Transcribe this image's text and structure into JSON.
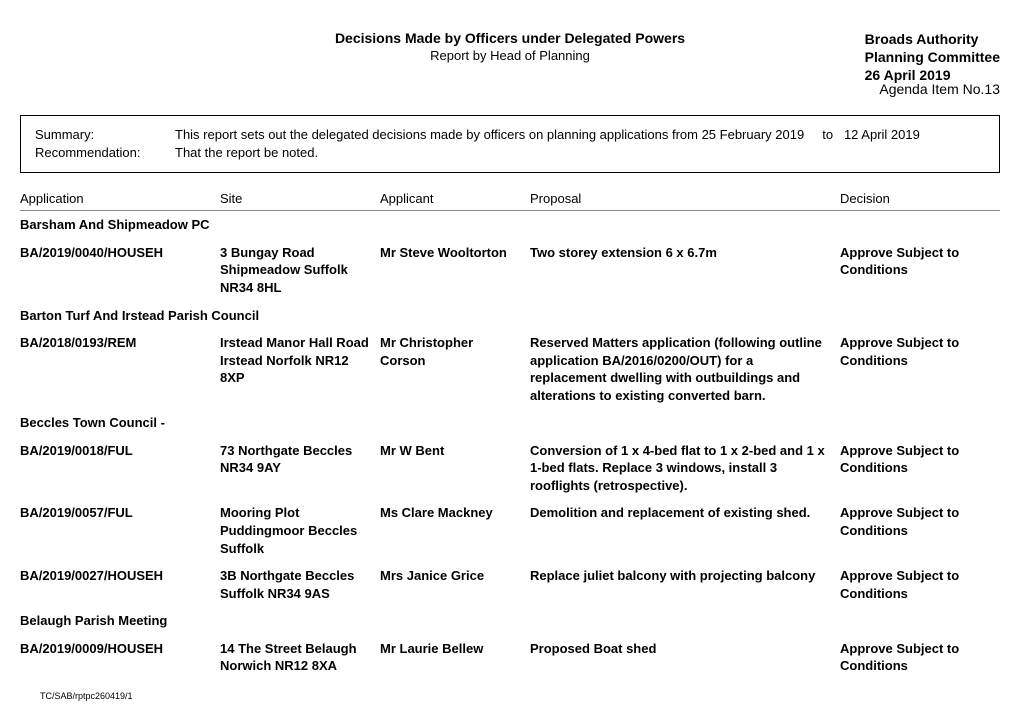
{
  "header": {
    "title": "Decisions Made by Officers under Delegated Powers",
    "subtitle": "Report by Head of Planning",
    "authority_line1": "Broads Authority",
    "authority_line2": "Planning Committee",
    "date": "26 April 2019",
    "agenda": "Agenda Item No.13"
  },
  "summary": {
    "label": "Summary:",
    "text_prefix": "This report sets out the delegated decisions made by officers on planning applications from",
    "date_from": "25 February 2019",
    "to_word": "to",
    "date_to": "12 April 2019",
    "rec_label": "Recommendation:",
    "rec_text": "That the report be noted."
  },
  "columns": {
    "application": "Application",
    "site": "Site",
    "applicant": "Applicant",
    "proposal": "Proposal",
    "decision": "Decision"
  },
  "groups": [
    {
      "name": "Barsham And Shipmeadow PC",
      "rows": [
        {
          "application": "BA/2019/0040/HOUSEH",
          "site": "3 Bungay Road Shipmeadow Suffolk NR34 8HL",
          "applicant": "Mr Steve Wooltorton",
          "proposal": "Two storey extension 6 x 6.7m",
          "decision": "Approve Subject to Conditions"
        }
      ]
    },
    {
      "name": "Barton Turf And Irstead Parish Council",
      "rows": [
        {
          "application": "BA/2018/0193/REM",
          "site": "Irstead Manor Hall Road Irstead Norfolk NR12 8XP",
          "applicant": "Mr Christopher Corson",
          "proposal": "Reserved Matters application (following outline application BA/2016/0200/OUT) for a replacement dwelling with outbuildings and alterations to existing converted barn.",
          "decision": "Approve Subject to Conditions"
        }
      ]
    },
    {
      "name": "Beccles Town Council -",
      "rows": [
        {
          "application": "BA/2019/0018/FUL",
          "site": "73 Northgate Beccles NR34 9AY",
          "applicant": "Mr W Bent",
          "proposal": "Conversion of 1 x 4-bed flat to 1 x 2-bed and 1 x 1-bed flats. Replace 3 windows, install 3 rooflights (retrospective).",
          "decision": "Approve Subject to Conditions"
        },
        {
          "application": "BA/2019/0057/FUL",
          "site": "Mooring Plot Puddingmoor Beccles Suffolk",
          "applicant": "Ms Clare Mackney",
          "proposal": "Demolition and replacement of existing shed.",
          "decision": "Approve Subject to Conditions"
        },
        {
          "application": "BA/2019/0027/HOUSEH",
          "site": "3B Northgate Beccles Suffolk NR34 9AS",
          "applicant": "Mrs Janice Grice",
          "proposal": "Replace juliet balcony with projecting balcony",
          "decision": "Approve Subject to Conditions"
        }
      ]
    },
    {
      "name": "Belaugh Parish Meeting",
      "rows": [
        {
          "application": "BA/2019/0009/HOUSEH",
          "site": "14 The Street Belaugh Norwich NR12 8XA",
          "applicant": "Mr Laurie Bellew",
          "proposal": "Proposed Boat shed",
          "decision": "Approve Subject to Conditions"
        }
      ]
    }
  ],
  "footer": "TC/SAB/rptpc260419/1"
}
